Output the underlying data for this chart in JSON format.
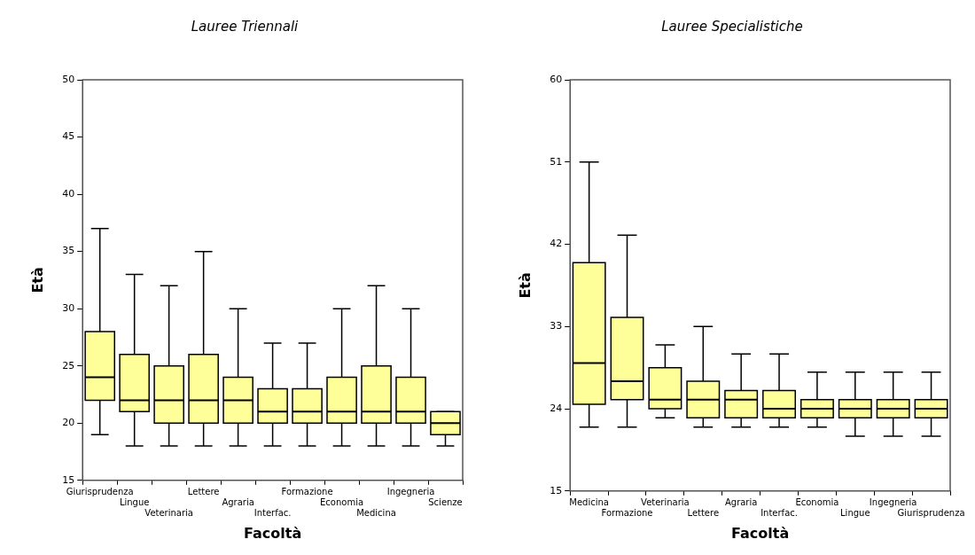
{
  "chart_data": [
    {
      "type": "box",
      "title": "Lauree Triennali",
      "xlabel": "Facoltà",
      "ylabel": "Età",
      "color": "#ffff99",
      "categories": [
        "Giurisprudenza",
        "Lingue",
        "Veterinaria",
        "Lettere",
        "Agraria",
        "Interfac.",
        "Formazione",
        "Economia",
        "Medicina",
        "Ingegneria",
        "Scienze"
      ],
      "boxes": [
        {
          "low": 19,
          "q1": 22,
          "median": 24,
          "q3": 28,
          "high": 37
        },
        {
          "low": 18,
          "q1": 21,
          "median": 22,
          "q3": 26,
          "high": 33
        },
        {
          "low": 18,
          "q1": 20,
          "median": 22,
          "q3": 25,
          "high": 32
        },
        {
          "low": 18,
          "q1": 20,
          "median": 22,
          "q3": 26,
          "high": 35
        },
        {
          "low": 18,
          "q1": 20,
          "median": 22,
          "q3": 24,
          "high": 30
        },
        {
          "low": 18,
          "q1": 20,
          "median": 21,
          "q3": 23,
          "high": 27
        },
        {
          "low": 18,
          "q1": 20,
          "median": 21,
          "q3": 23,
          "high": 27
        },
        {
          "low": 18,
          "q1": 20,
          "median": 21,
          "q3": 24,
          "high": 30
        },
        {
          "low": 18,
          "q1": 20,
          "median": 21,
          "q3": 25,
          "high": 32
        },
        {
          "low": 18,
          "q1": 20,
          "median": 21,
          "q3": 24,
          "high": 30
        },
        {
          "low": 18,
          "q1": 19,
          "median": 20,
          "q3": 21,
          "high": 21
        }
      ],
      "ylim": [
        15,
        50
      ],
      "yticks": [
        15,
        20,
        25,
        30,
        35,
        40,
        45,
        50
      ]
    },
    {
      "type": "box",
      "title": "Lauree Specialistiche",
      "xlabel": "Facoltà",
      "ylabel": "Età",
      "color": "#ffff99",
      "categories": [
        "Medicina",
        "Formazione",
        "Veterinaria",
        "Lettere",
        "Agraria",
        "Interfac.",
        "Economia",
        "Lingue",
        "Ingegneria",
        "Giurisprudenza"
      ],
      "boxes": [
        {
          "low": 22,
          "q1": 24.5,
          "median": 29,
          "q3": 40,
          "high": 51
        },
        {
          "low": 22,
          "q1": 25,
          "median": 27,
          "q3": 34,
          "high": 43
        },
        {
          "low": 23,
          "q1": 24,
          "median": 25,
          "q3": 28.5,
          "high": 31
        },
        {
          "low": 22,
          "q1": 23,
          "median": 25,
          "q3": 27,
          "high": 33
        },
        {
          "low": 22,
          "q1": 23,
          "median": 25,
          "q3": 26,
          "high": 30
        },
        {
          "low": 22,
          "q1": 23,
          "median": 24,
          "q3": 26,
          "high": 30
        },
        {
          "low": 22,
          "q1": 23,
          "median": 24,
          "q3": 25,
          "high": 28
        },
        {
          "low": 21,
          "q1": 23,
          "median": 24,
          "q3": 25,
          "high": 28
        },
        {
          "low": 21,
          "q1": 23,
          "median": 24,
          "q3": 25,
          "high": 28
        },
        {
          "low": 21,
          "q1": 23,
          "median": 24,
          "q3": 25,
          "high": 28
        }
      ],
      "ylim": [
        15,
        60
      ],
      "yticks": [
        15,
        24,
        33,
        42,
        51,
        60
      ]
    }
  ]
}
